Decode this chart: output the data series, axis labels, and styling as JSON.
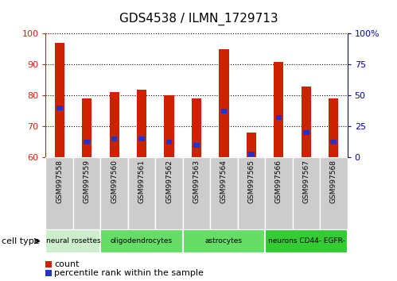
{
  "title": "GDS4538 / ILMN_1729713",
  "samples": [
    "GSM997558",
    "GSM997559",
    "GSM997560",
    "GSM997561",
    "GSM997562",
    "GSM997563",
    "GSM997564",
    "GSM997565",
    "GSM997566",
    "GSM997567",
    "GSM997568"
  ],
  "count_values": [
    97,
    79,
    81,
    82,
    80,
    79,
    95,
    68,
    91,
    83,
    79
  ],
  "percentile_values": [
    76,
    65,
    66,
    66,
    65,
    64,
    75,
    61,
    73,
    68,
    65
  ],
  "y_min": 60,
  "y_max": 100,
  "y_ticks": [
    60,
    70,
    80,
    90,
    100
  ],
  "right_y_ticks": [
    0,
    25,
    50,
    75,
    100
  ],
  "right_y_labels": [
    "0",
    "25",
    "50",
    "75",
    "100%"
  ],
  "bar_color": "#cc2200",
  "percentile_color": "#2233cc",
  "cell_type_groups": [
    {
      "label": "neural rosettes",
      "start": 0,
      "end": 2,
      "color": "#cceecc"
    },
    {
      "label": "oligodendrocytes",
      "start": 2,
      "end": 5,
      "color": "#66dd66"
    },
    {
      "label": "astrocytes",
      "start": 5,
      "end": 8,
      "color": "#66dd66"
    },
    {
      "label": "neurons CD44- EGFR-",
      "start": 8,
      "end": 11,
      "color": "#33cc33"
    }
  ],
  "legend_count_label": "count",
  "legend_percentile_label": "percentile rank within the sample",
  "cell_type_label": "cell type",
  "bar_width": 0.35,
  "tick_color_left": "#cc2200",
  "tick_color_right": "#0000bb",
  "sample_box_color": "#cccccc",
  "plot_bg": "#ffffff"
}
